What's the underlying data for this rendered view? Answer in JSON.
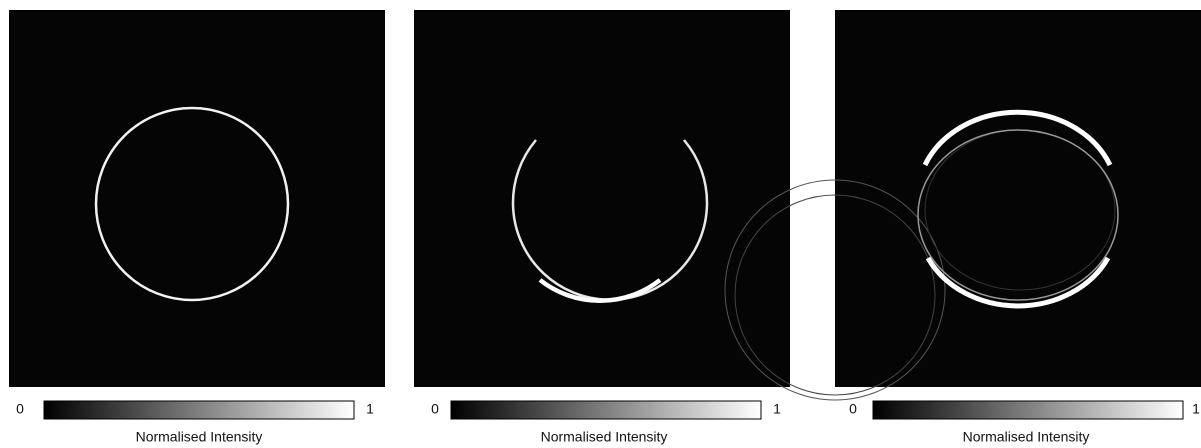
{
  "panels": [
    {
      "colorbar": {
        "min": 0,
        "max": 1,
        "label": "Normalised Intensity"
      }
    },
    {
      "colorbar": {
        "min": 0,
        "max": 1,
        "label": "Normalised Intensity"
      }
    },
    {
      "colorbar": {
        "min": 0,
        "max": 1,
        "label": "Normalised Intensity"
      }
    }
  ]
}
